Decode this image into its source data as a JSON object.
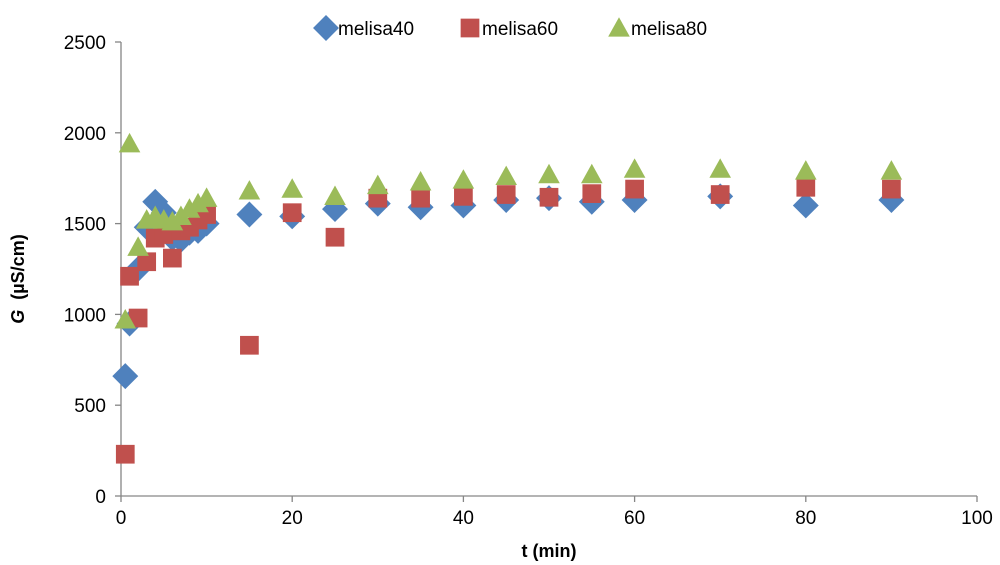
{
  "chart_data": {
    "type": "scatter",
    "xlabel": "t (min)",
    "ylabel_parts": [
      "G",
      "(µS/cm)"
    ],
    "xlim": [
      0,
      100
    ],
    "ylim": [
      0,
      2500
    ],
    "xticks": [
      0,
      20,
      40,
      60,
      80,
      100
    ],
    "yticks": [
      0,
      500,
      1000,
      1500,
      2000,
      2500
    ],
    "grid": false,
    "legend_position": "top-center",
    "series": [
      {
        "name": "melisa40",
        "marker": "diamond",
        "color": "#4f81bd",
        "points": [
          [
            0.5,
            660
          ],
          [
            1,
            950
          ],
          [
            2,
            1250
          ],
          [
            3,
            1480
          ],
          [
            4,
            1620
          ],
          [
            5,
            1560
          ],
          [
            6,
            1420
          ],
          [
            7,
            1410
          ],
          [
            8,
            1450
          ],
          [
            9,
            1460
          ],
          [
            10,
            1500
          ],
          [
            15,
            1550
          ],
          [
            20,
            1540
          ],
          [
            25,
            1580
          ],
          [
            30,
            1610
          ],
          [
            35,
            1590
          ],
          [
            40,
            1600
          ],
          [
            45,
            1630
          ],
          [
            50,
            1640
          ],
          [
            55,
            1620
          ],
          [
            60,
            1630
          ],
          [
            70,
            1650
          ],
          [
            80,
            1600
          ],
          [
            90,
            1630
          ]
        ]
      },
      {
        "name": "melisa60",
        "marker": "square",
        "color": "#c0504d",
        "points": [
          [
            0.5,
            230
          ],
          [
            1,
            1210
          ],
          [
            2,
            980
          ],
          [
            3,
            1290
          ],
          [
            4,
            1420
          ],
          [
            5,
            1440
          ],
          [
            6,
            1310
          ],
          [
            7,
            1460
          ],
          [
            8,
            1480
          ],
          [
            9,
            1520
          ],
          [
            10,
            1550
          ],
          [
            15,
            830
          ],
          [
            20,
            1560
          ],
          [
            25,
            1425
          ],
          [
            30,
            1640
          ],
          [
            35,
            1640
          ],
          [
            40,
            1650
          ],
          [
            45,
            1660
          ],
          [
            50,
            1645
          ],
          [
            55,
            1665
          ],
          [
            60,
            1690
          ],
          [
            70,
            1660
          ],
          [
            80,
            1700
          ],
          [
            90,
            1690
          ]
        ]
      },
      {
        "name": "melisa80",
        "marker": "triangle",
        "color": "#9bbb59",
        "points": [
          [
            0.5,
            970
          ],
          [
            1,
            1940
          ],
          [
            2,
            1370
          ],
          [
            3,
            1520
          ],
          [
            4,
            1540
          ],
          [
            5,
            1520
          ],
          [
            6,
            1510
          ],
          [
            7,
            1540
          ],
          [
            8,
            1580
          ],
          [
            9,
            1610
          ],
          [
            10,
            1640
          ],
          [
            15,
            1680
          ],
          [
            20,
            1690
          ],
          [
            25,
            1650
          ],
          [
            30,
            1710
          ],
          [
            35,
            1730
          ],
          [
            40,
            1740
          ],
          [
            45,
            1760
          ],
          [
            50,
            1770
          ],
          [
            55,
            1770
          ],
          [
            60,
            1800
          ],
          [
            70,
            1800
          ],
          [
            80,
            1790
          ],
          [
            90,
            1790
          ]
        ]
      }
    ]
  }
}
